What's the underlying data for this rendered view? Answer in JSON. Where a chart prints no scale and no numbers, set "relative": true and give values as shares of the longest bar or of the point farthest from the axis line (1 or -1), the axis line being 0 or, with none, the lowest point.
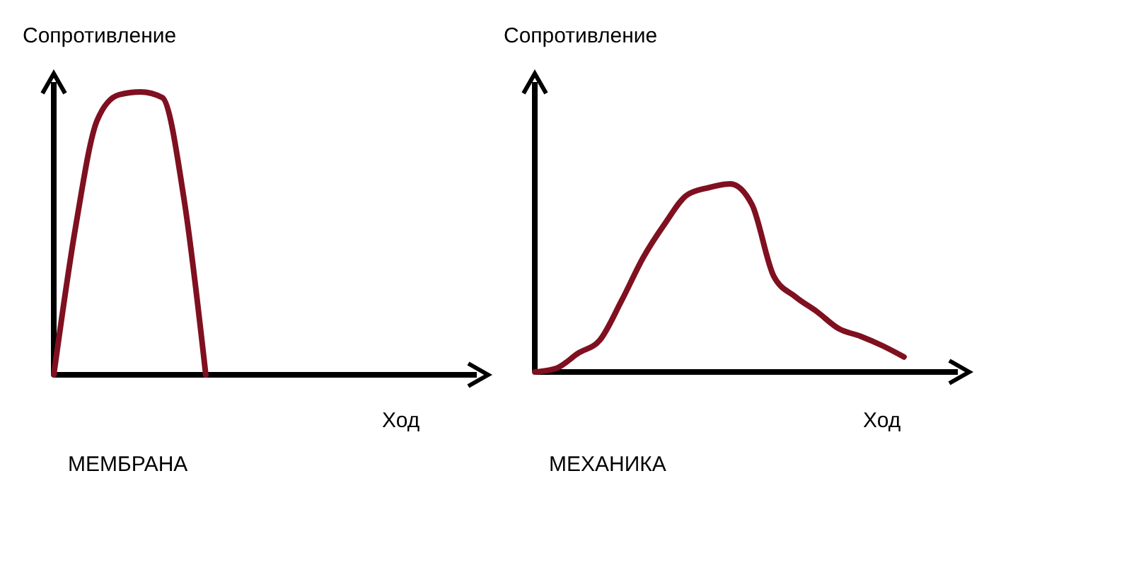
{
  "chart_data": [
    {
      "type": "line",
      "relative": true,
      "ylabel": "Сопротивление",
      "xlabel": "Ход",
      "annotations": [
        "МЕМБРАНА"
      ],
      "categories": [
        null,
        null,
        null,
        null,
        null,
        null,
        null,
        null,
        null,
        null,
        null,
        null,
        null,
        null,
        null,
        null,
        null,
        null,
        null,
        null,
        null
      ],
      "series": [
        {
          "color": "#7f1020",
          "values": [
            0,
            0.52,
            0.9,
            0.99,
            1,
            0.98,
            0.62,
            0,
            null,
            null,
            null,
            null,
            null,
            null,
            null,
            null,
            null,
            null,
            null,
            null,
            null
          ]
        }
      ]
    },
    {
      "type": "line",
      "relative": true,
      "ylabel": "Сопротивление",
      "xlabel": "Ход",
      "annotations": [
        "МЕХАНИКА"
      ],
      "categories": [
        null,
        null,
        null,
        null,
        null,
        null,
        null,
        null,
        null,
        null,
        null,
        null,
        null,
        null,
        null,
        null,
        null,
        null,
        null,
        null,
        null
      ],
      "series": [
        {
          "color": "#7f1020",
          "values": [
            0,
            0.02,
            0.1,
            0.17,
            0.38,
            0.61,
            0.79,
            0.94,
            0.98,
            1,
            0.89,
            0.51,
            0.4,
            0.32,
            0.23,
            0.19,
            0.14,
            0.08,
            null,
            null,
            null
          ]
        }
      ]
    }
  ]
}
